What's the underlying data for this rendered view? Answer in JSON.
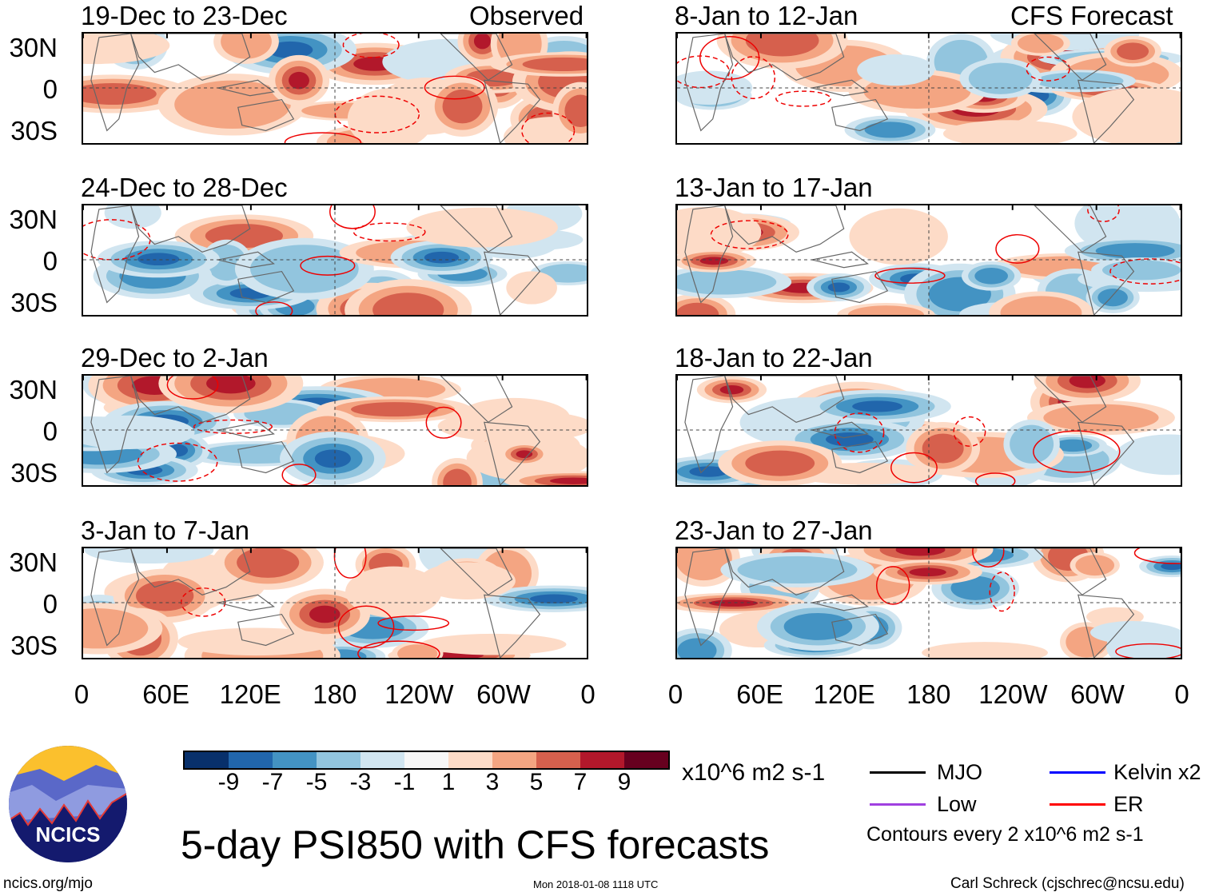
{
  "headers": {
    "left": "Observed",
    "right": "CFS Forecast"
  },
  "panels_left": [
    "19-Dec to 23-Dec",
    "24-Dec to 28-Dec",
    "29-Dec to 2-Jan",
    "3-Jan to 7-Jan"
  ],
  "panels_right": [
    "8-Jan to 12-Jan",
    "13-Jan to 17-Jan",
    "18-Jan to 22-Jan",
    "23-Jan to 27-Jan"
  ],
  "lat_labels": [
    "30N",
    "0",
    "30S"
  ],
  "lon_labels": [
    "0",
    "60E",
    "120E",
    "180",
    "120W",
    "60W",
    "0"
  ],
  "colorbar": {
    "colors": [
      "#08306b",
      "#2166ac",
      "#4393c3",
      "#92c5de",
      "#d1e5f0",
      "#f7f7f7",
      "#fddbc7",
      "#f4a582",
      "#d6604d",
      "#b2182b",
      "#67001f"
    ],
    "labels": [
      "-9",
      "-7",
      "-5",
      "-3",
      "-1",
      "1",
      "3",
      "5",
      "7",
      "9"
    ],
    "units": "x10^6 m2 s-1"
  },
  "legend": {
    "items": [
      {
        "label": "MJO",
        "color": "#000000"
      },
      {
        "label": "Kelvin x2",
        "color": "#0000ff"
      },
      {
        "label": "Low",
        "color": "#a040e0"
      },
      {
        "label": "ER",
        "color": "#ff0000"
      }
    ],
    "note": "Contours every 2 x10^6 m2 s-1"
  },
  "title": "5-day PSI850 with CFS forecasts",
  "logo_text": "NCICS",
  "footer": {
    "url": "ncics.org/mjo",
    "timestamp": "Mon 2018-01-08 1118 UTC",
    "author": "Carl Schreck (cjschrec@ncsu.edu)"
  }
}
